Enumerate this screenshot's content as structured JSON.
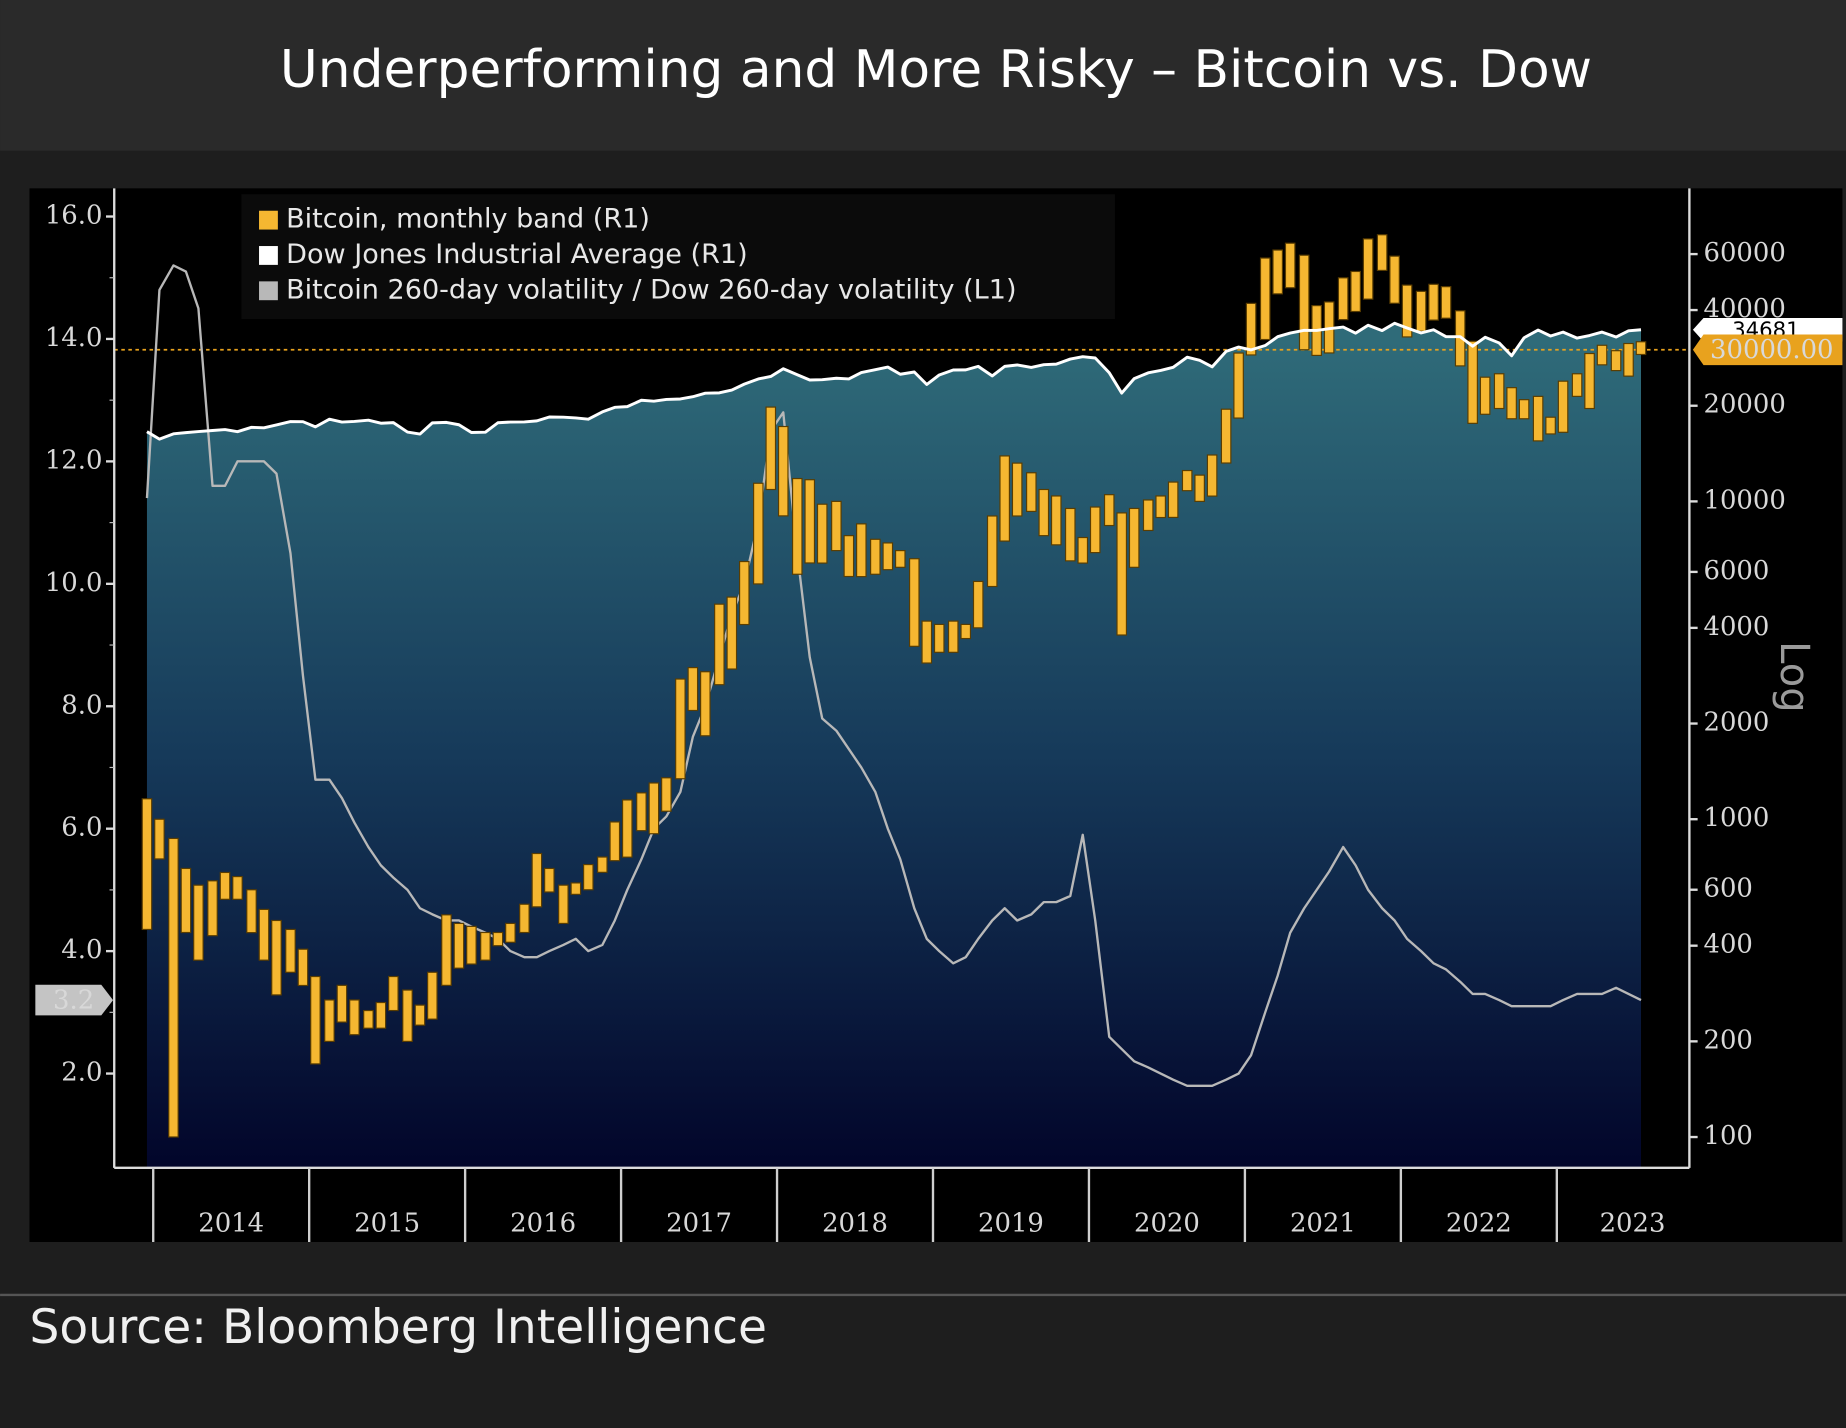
{
  "chart_data": {
    "type": "band-line",
    "title": "Underperforming and More Risky – Bitcoin vs. Dow",
    "source": "Source: Bloomberg Intelligence",
    "x": [
      2013.96,
      2014.04,
      2014.13,
      2014.21,
      2014.29,
      2014.38,
      2014.46,
      2014.54,
      2014.63,
      2014.71,
      2014.79,
      2014.88,
      2014.96,
      2015.04,
      2015.13,
      2015.21,
      2015.29,
      2015.38,
      2015.46,
      2015.54,
      2015.63,
      2015.71,
      2015.79,
      2015.88,
      2015.96,
      2016.04,
      2016.13,
      2016.21,
      2016.29,
      2016.38,
      2016.46,
      2016.54,
      2016.63,
      2016.71,
      2016.79,
      2016.88,
      2016.96,
      2017.04,
      2017.13,
      2017.21,
      2017.29,
      2017.38,
      2017.46,
      2017.54,
      2017.63,
      2017.71,
      2017.79,
      2017.88,
      2017.96,
      2018.04,
      2018.13,
      2018.21,
      2018.29,
      2018.38,
      2018.46,
      2018.54,
      2018.63,
      2018.71,
      2018.79,
      2018.88,
      2018.96,
      2019.04,
      2019.13,
      2019.21,
      2019.29,
      2019.38,
      2019.46,
      2019.54,
      2019.63,
      2019.71,
      2019.79,
      2019.88,
      2019.96,
      2020.04,
      2020.13,
      2020.21,
      2020.29,
      2020.38,
      2020.46,
      2020.54,
      2020.63,
      2020.71,
      2020.79,
      2020.88,
      2020.96,
      2021.04,
      2021.13,
      2021.21,
      2021.29,
      2021.38,
      2021.46,
      2021.54,
      2021.63,
      2021.71,
      2021.79,
      2021.88,
      2021.96,
      2022.04,
      2022.13,
      2022.21,
      2022.29,
      2022.38,
      2022.46,
      2022.54,
      2022.63,
      2022.71,
      2022.79,
      2022.88,
      2022.96,
      2023.04,
      2023.13,
      2023.21,
      2023.29,
      2023.38,
      2023.46,
      2023.54
    ],
    "xlim": [
      2013.75,
      2023.85
    ],
    "xticks": [
      2014,
      2015,
      2016,
      2017,
      2018,
      2019,
      2020,
      2021,
      2022,
      2023
    ],
    "ylim": [
      0.46,
      16.46
    ],
    "yticks": [
      {
        "value": 2,
        "label": "2.0"
      },
      {
        "value": 4,
        "label": "4.0"
      },
      {
        "value": 6,
        "label": "6.0"
      },
      {
        "value": 8,
        "label": "8.0"
      },
      {
        "value": 10,
        "label": "10.0"
      },
      {
        "value": 12,
        "label": "12.0"
      },
      {
        "value": 14,
        "label": "14.0"
      },
      {
        "value": 16,
        "label": "16.0"
      }
    ],
    "y2lim": [
      80,
      96600
    ],
    "y2ticks": [
      100,
      200,
      400,
      600,
      1000,
      2000,
      4000,
      6000,
      10000,
      20000,
      40000,
      60000
    ],
    "y2_log": true,
    "y2label": "Log",
    "reference_line": {
      "value": 30000,
      "label": "30000.00",
      "axis": "y2",
      "color": "#e8a21e"
    },
    "series": [
      {
        "name": "Bitcoin, monthly band (R1)",
        "color": "#f5b731",
        "axis": "y2",
        "low": [
          450,
          750,
          100,
          440,
          360,
          430,
          560,
          560,
          440,
          360,
          280,
          330,
          300,
          170,
          200,
          230,
          210,
          220,
          220,
          250,
          200,
          225,
          235,
          300,
          340,
          350,
          360,
          400,
          410,
          440,
          530,
          590,
          470,
          580,
          600,
          680,
          740,
          760,
          920,
          900,
          1060,
          1340,
          2200,
          1830,
          2650,
          2970,
          4100,
          5500,
          10900,
          9000,
          5900,
          6400,
          6400,
          7000,
          5800,
          5800,
          5900,
          6100,
          6200,
          3500,
          3100,
          3350,
          3350,
          3700,
          4000,
          5400,
          7500,
          9000,
          9300,
          7800,
          7300,
          6500,
          6400,
          6900,
          8400,
          3800,
          6200,
          8100,
          8900,
          8900,
          10800,
          10000,
          10400,
          13200,
          18300,
          28900,
          32300,
          45000,
          47000,
          30000,
          28800,
          29300,
          37300,
          39600,
          43300,
          53300,
          42000,
          32900,
          34300,
          37200,
          37700,
          26700,
          17600,
          18800,
          19600,
          18200,
          18200,
          15500,
          16300,
          16500,
          21400,
          19600,
          26900,
          25800,
          24800,
          29000
        ],
        "high": [
          1160,
          1000,
          870,
          700,
          620,
          640,
          680,
          660,
          600,
          520,
          480,
          450,
          390,
          320,
          270,
          300,
          270,
          250,
          265,
          320,
          290,
          260,
          330,
          500,
          470,
          460,
          440,
          440,
          470,
          540,
          780,
          700,
          620,
          630,
          720,
          760,
          980,
          1150,
          1210,
          1300,
          1350,
          2760,
          3000,
          2910,
          4750,
          5000,
          6470,
          11400,
          19800,
          17200,
          11800,
          11700,
          9800,
          10000,
          7800,
          8500,
          7600,
          7400,
          7000,
          6600,
          4200,
          4100,
          4200,
          4100,
          5600,
          9000,
          13900,
          13200,
          12300,
          10900,
          10400,
          9500,
          7700,
          9600,
          10500,
          9200,
          9500,
          10100,
          10400,
          11500,
          12500,
          12100,
          14000,
          19500,
          29300,
          42000,
          58300,
          61800,
          64900,
          59500,
          41300,
          42400,
          50500,
          52900,
          67000,
          69000,
          59100,
          47900,
          45800,
          48200,
          47400,
          39800,
          31900,
          24600,
          25200,
          22800,
          20900,
          21400,
          18400,
          23900,
          25200,
          29200,
          31000,
          29800,
          31400,
          31800
        ]
      },
      {
        "name": "Dow Jones Industrial Average (R1)",
        "color": "#ffffff",
        "axis": "y2",
        "values": [
          16577,
          15699,
          16322,
          16458,
          16581,
          16717,
          16827,
          16563,
          17098,
          17043,
          17391,
          17828,
          17823,
          17165,
          18133,
          17776,
          17841,
          18011,
          17620,
          17690,
          16528,
          16285,
          17664,
          17720,
          17425,
          16466,
          16517,
          17685,
          17774,
          17787,
          17930,
          18432,
          18401,
          18308,
          18142,
          19124,
          19763,
          19864,
          20812,
          20663,
          20941,
          21009,
          21350,
          21891,
          21948,
          22405,
          23377,
          24272,
          24719,
          26149,
          25029,
          24103,
          24163,
          24416,
          24271,
          25415,
          25965,
          26458,
          25116,
          25538,
          23327,
          24999,
          25916,
          25929,
          26593,
          24815,
          26600,
          26864,
          26403,
          26917,
          27046,
          28051,
          28538,
          28256,
          25409,
          21917,
          24346,
          25383,
          25813,
          26428,
          28430,
          27782,
          26502,
          29638,
          30606,
          29983,
          30932,
          32982,
          33875,
          34529,
          34503,
          34935,
          35361,
          33844,
          35820,
          34484,
          36338,
          35132,
          33893,
          34678,
          32977,
          32990,
          30775,
          32845,
          31510,
          28726,
          32733,
          34590,
          33147,
          34086,
          32657,
          33274,
          34098,
          32908,
          34408,
          34681
        ]
      },
      {
        "name": "Bitcoin 260-day volatility / Dow 260-day volatility (L1)",
        "color": "#b8b8b8",
        "axis": "y",
        "values": [
          11.4,
          14.8,
          15.2,
          15.1,
          14.5,
          11.6,
          11.6,
          12.0,
          12.0,
          12.0,
          11.8,
          10.5,
          8.5,
          6.8,
          6.8,
          6.5,
          6.1,
          5.7,
          5.4,
          5.2,
          5.0,
          4.7,
          4.6,
          4.5,
          4.5,
          4.4,
          4.3,
          4.2,
          4.0,
          3.9,
          3.9,
          4.0,
          4.1,
          4.2,
          4.0,
          4.1,
          4.5,
          5.0,
          5.5,
          6.0,
          6.2,
          6.6,
          7.5,
          8.0,
          8.8,
          9.5,
          10.0,
          11.0,
          12.5,
          12.8,
          10.5,
          8.8,
          7.8,
          7.6,
          7.3,
          7.0,
          6.6,
          6.0,
          5.5,
          4.7,
          4.2,
          4.0,
          3.8,
          3.9,
          4.2,
          4.5,
          4.7,
          4.5,
          4.6,
          4.8,
          4.8,
          4.9,
          5.9,
          4.5,
          2.6,
          2.4,
          2.2,
          2.1,
          2.0,
          1.9,
          1.8,
          1.8,
          1.8,
          1.9,
          2.0,
          2.3,
          3.0,
          3.6,
          4.3,
          4.7,
          5.0,
          5.3,
          5.7,
          5.4,
          5.0,
          4.7,
          4.5,
          4.2,
          4.0,
          3.8,
          3.7,
          3.5,
          3.3,
          3.3,
          3.2,
          3.1,
          3.1,
          3.1,
          3.1,
          3.2,
          3.3,
          3.3,
          3.3,
          3.4,
          3.3,
          3.2
        ]
      }
    ]
  }
}
